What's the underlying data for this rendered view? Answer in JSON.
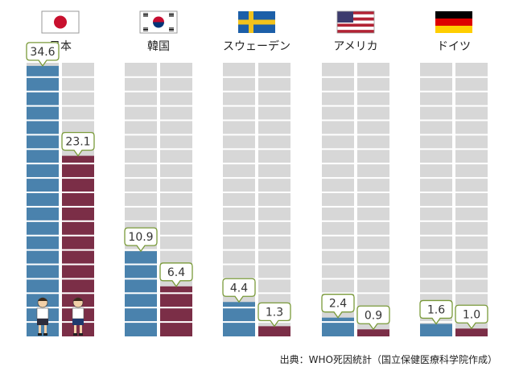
{
  "chart_data": {
    "type": "bar",
    "categories": [
      "日本",
      "韓国",
      "スウェーデン",
      "アメリカ",
      "ドイツ"
    ],
    "flags": [
      "japan-flag",
      "korea-flag",
      "sweden-flag",
      "usa-flag",
      "germany-flag"
    ],
    "series": [
      {
        "color": "#4a82ad",
        "values": [
          34.6,
          10.9,
          4.4,
          2.4,
          1.6
        ],
        "labels": [
          "34.6",
          "10.9",
          "4.4",
          "2.4",
          "1.6"
        ]
      },
      {
        "color": "#7b2e47",
        "values": [
          23.1,
          6.4,
          1.3,
          0.9,
          1.0
        ],
        "labels": [
          "23.1",
          "6.4",
          "1.3",
          "0.9",
          "1.0"
        ]
      }
    ],
    "ylim": [
      0,
      35
    ],
    "grid": true,
    "annotation_icons": [
      "boy-figure",
      "girl-figure"
    ],
    "colors": {
      "background_blocks": "#d7d7d7",
      "block_gap": "#ffffff"
    }
  },
  "source_note": "出典：WHO死因統計（国立保健医療科学院作成）"
}
